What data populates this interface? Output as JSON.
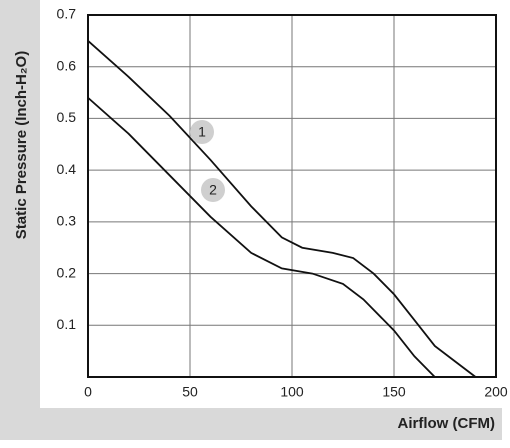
{
  "chart_data": {
    "type": "line",
    "xlabel": "Airflow (CFM)",
    "ylabel": "Static Pressure (Inch-H₂O)",
    "xlim": [
      0,
      200
    ],
    "xticks": [
      0,
      50,
      100,
      150,
      200
    ],
    "ylim": [
      0,
      0.7
    ],
    "yticks": [
      0.1,
      0.2,
      0.3,
      0.4,
      0.5,
      0.6,
      0.7
    ],
    "grid": true,
    "series": [
      {
        "name": "1",
        "color": "#111111",
        "x": [
          0,
          20,
          40,
          60,
          80,
          95,
          105,
          120,
          130,
          140,
          150,
          160,
          170,
          180,
          190
        ],
        "values": [
          0.65,
          0.58,
          0.505,
          0.42,
          0.33,
          0.27,
          0.25,
          0.24,
          0.23,
          0.2,
          0.16,
          0.11,
          0.06,
          0.03,
          0
        ]
      },
      {
        "name": "2",
        "color": "#111111",
        "x": [
          0,
          20,
          40,
          60,
          80,
          95,
          110,
          125,
          135,
          150,
          160,
          170
        ],
        "values": [
          0.54,
          0.47,
          0.39,
          0.31,
          0.24,
          0.21,
          0.2,
          0.18,
          0.15,
          0.09,
          0.04,
          0
        ]
      }
    ]
  }
}
